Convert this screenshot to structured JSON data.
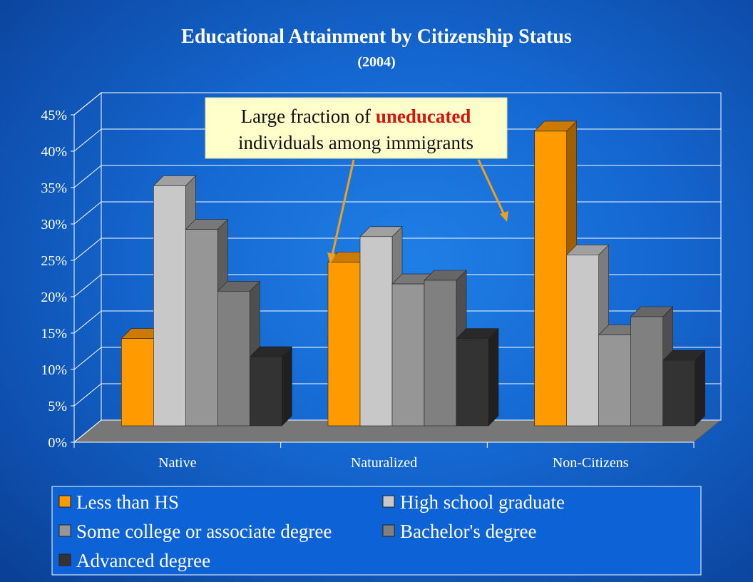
{
  "chart_data": {
    "type": "bar",
    "title": "Educational Attainment by Citizenship Status",
    "subtitle": "(2004)",
    "categories": [
      "Native",
      "Naturalized",
      "Non-Citizens"
    ],
    "y_ticks": [
      "0%",
      "5%",
      "10%",
      "15%",
      "20%",
      "25%",
      "30%",
      "35%",
      "40%",
      "45%"
    ],
    "ylim": [
      0,
      45
    ],
    "grid": true,
    "legend_position": "bottom",
    "series": [
      {
        "name": "Less than HS",
        "values": [
          12,
          22.5,
          40.5
        ],
        "color": "#ff9a00"
      },
      {
        "name": "High school graduate",
        "values": [
          33,
          26,
          23.5
        ],
        "color": "#c8c8c8"
      },
      {
        "name": "Some college or associate degree",
        "values": [
          27,
          19.5,
          12.5
        ],
        "color": "#969696"
      },
      {
        "name": "Bachelor's degree",
        "values": [
          18.5,
          20,
          15
        ],
        "color": "#808080"
      },
      {
        "name": "Advanced degree",
        "values": [
          9.5,
          12,
          9
        ],
        "color": "#333333"
      }
    ],
    "annotation": {
      "before": "Large fraction of ",
      "highlight": "uneducated",
      "line2": "individuals among immigrants"
    }
  }
}
